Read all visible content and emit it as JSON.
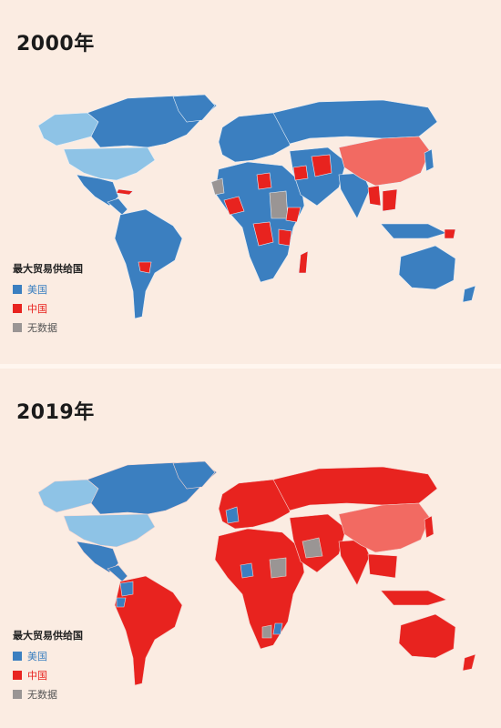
{
  "colors": {
    "usa": "#3b7fc0",
    "usa_light": "#8ec3e6",
    "china": "#e8231f",
    "china_light": "#f26a62",
    "nodata": "#9a9594"
  },
  "panels": [
    {
      "title": "2000年",
      "legend": {
        "title": "最大贸易供给国",
        "items": [
          {
            "label": "美国",
            "color": "#3b7fc0",
            "text_color": "#3b7fc0"
          },
          {
            "label": "中国",
            "color": "#e8231f",
            "text_color": "#e8231f"
          },
          {
            "label": "无数据",
            "color": "#9a9594",
            "text_color": "#555555"
          }
        ]
      }
    },
    {
      "title": "2019年",
      "legend": {
        "title": "最大贸易供给国",
        "items": [
          {
            "label": "美国",
            "color": "#3b7fc0",
            "text_color": "#3b7fc0"
          },
          {
            "label": "中国",
            "color": "#e8231f",
            "text_color": "#e8231f"
          },
          {
            "label": "无数据",
            "color": "#9a9594",
            "text_color": "#555555"
          }
        ]
      }
    }
  ]
}
